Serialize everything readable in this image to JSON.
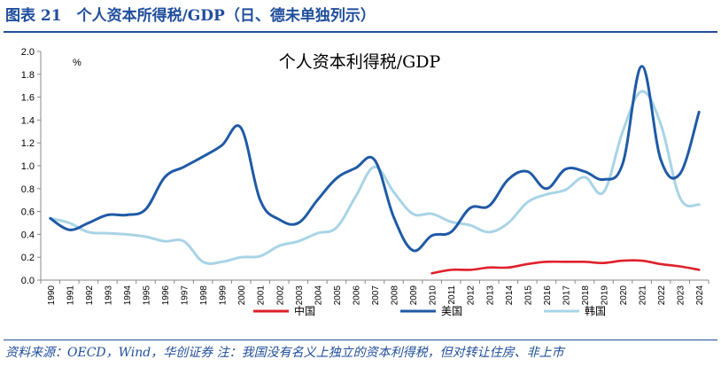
{
  "header": {
    "figure_title": "图表 21　个人资本所得税/GDP（日、德未单独列示）"
  },
  "source_note": "资料来源：OECD，Wind，华创证券 注：我国没有名义上独立的资本利得税，但对转让住房、非上市",
  "colors": {
    "china": "#e0202a",
    "usa": "#1f5aa6",
    "korea": "#a8d4e6",
    "frame": "#1f4e9c"
  },
  "chart_data": {
    "type": "line",
    "title": "个人资本利得税/GDP",
    "unit_label": "%",
    "xlabel": "",
    "ylabel": "",
    "ylim": [
      0,
      2.0
    ],
    "yticks": [
      "0.0",
      "0.2",
      "0.4",
      "0.6",
      "0.8",
      "1.0",
      "1.2",
      "1.4",
      "1.6",
      "1.8",
      "2.0"
    ],
    "grid": false,
    "legend_position": "bottom",
    "x": [
      "1990",
      "1991",
      "1992",
      "1993",
      "1994",
      "1995",
      "1996",
      "1997",
      "1998",
      "1999",
      "2000",
      "2001",
      "2002",
      "2003",
      "2004",
      "2005",
      "2006",
      "2007",
      "2008",
      "2009",
      "2010",
      "2011",
      "2012",
      "2013",
      "2014",
      "2015",
      "2016",
      "2017",
      "2018",
      "2019",
      "2020",
      "2021",
      "2022",
      "2023",
      "2024"
    ],
    "series": [
      {
        "name": "中国",
        "color": "#e0202a",
        "values": [
          null,
          null,
          null,
          null,
          null,
          null,
          null,
          null,
          null,
          null,
          null,
          null,
          null,
          null,
          null,
          null,
          null,
          null,
          null,
          null,
          0.06,
          0.09,
          0.09,
          0.11,
          0.11,
          0.14,
          0.16,
          0.16,
          0.16,
          0.15,
          0.17,
          0.17,
          0.14,
          0.12,
          0.09
        ]
      },
      {
        "name": "美国",
        "color": "#1f5aa6",
        "values": [
          0.54,
          0.44,
          0.5,
          0.57,
          0.57,
          0.62,
          0.9,
          0.99,
          1.08,
          1.18,
          1.33,
          0.7,
          0.53,
          0.5,
          0.7,
          0.89,
          0.98,
          1.05,
          0.55,
          0.26,
          0.39,
          0.42,
          0.63,
          0.65,
          0.88,
          0.95,
          0.8,
          0.97,
          0.95,
          0.88,
          1.02,
          1.87,
          1.05,
          0.93,
          1.47
        ]
      },
      {
        "name": "韩国",
        "color": "#a8d4e6",
        "values": [
          0.54,
          0.5,
          0.42,
          0.41,
          0.4,
          0.38,
          0.34,
          0.34,
          0.16,
          0.16,
          0.2,
          0.21,
          0.3,
          0.34,
          0.41,
          0.46,
          0.73,
          0.99,
          0.77,
          0.58,
          0.58,
          0.51,
          0.48,
          0.42,
          0.5,
          0.68,
          0.75,
          0.79,
          0.9,
          0.77,
          1.3,
          1.65,
          1.36,
          0.72,
          0.66
        ]
      }
    ]
  }
}
